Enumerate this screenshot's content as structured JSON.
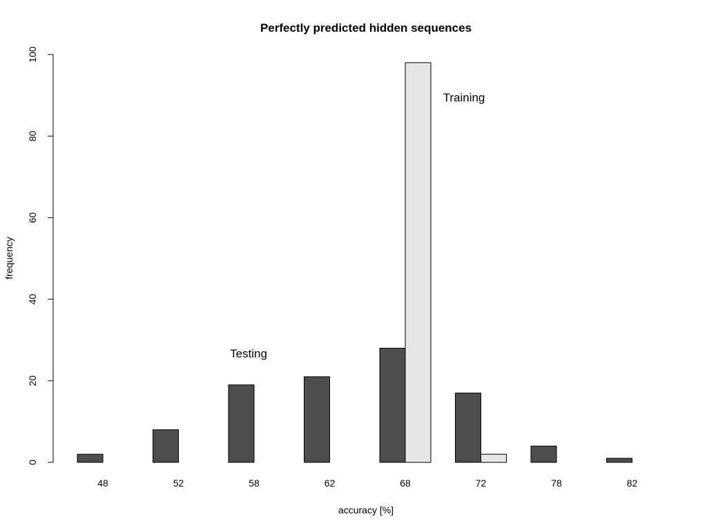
{
  "chart_data": {
    "type": "bar",
    "title": "Perfectly predicted hidden sequences",
    "xlabel": "accuracy [%]",
    "ylabel": "frequency",
    "categories": [
      "48",
      "52",
      "58",
      "62",
      "68",
      "72",
      "78",
      "82"
    ],
    "series": [
      {
        "values": [
          2,
          8,
          19,
          21,
          28,
          17,
          4,
          1
        ],
        "color": "#4d4d4d"
      },
      {
        "values": [
          0,
          0,
          0,
          0,
          98,
          2,
          0,
          0
        ],
        "color": "#e6e6e6"
      }
    ],
    "ylim": [
      0,
      100
    ],
    "yticks": [
      0,
      20,
      40,
      60,
      80,
      100
    ],
    "grid": false,
    "annotations": [
      {
        "text": "Testing"
      },
      {
        "text": "Training"
      }
    ]
  }
}
